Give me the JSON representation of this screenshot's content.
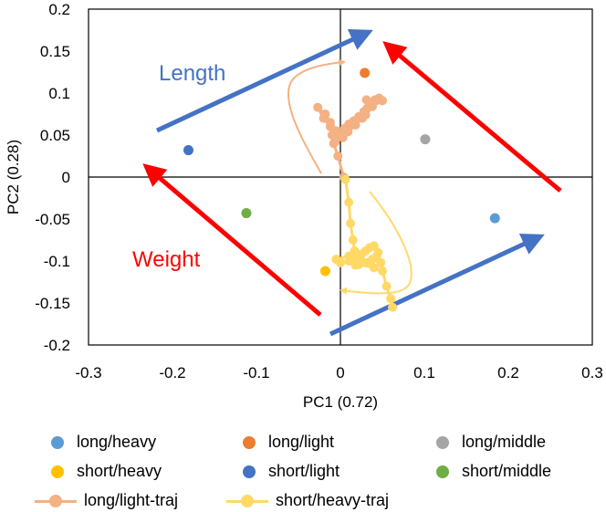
{
  "chart_data": {
    "type": "scatter",
    "title": "",
    "xlabel": "PC1 (0.72)",
    "ylabel": "PC2 (0.28)",
    "xlim": [
      -0.3,
      0.3
    ],
    "ylim": [
      -0.2,
      0.2
    ],
    "xticks": [
      -0.3,
      -0.2,
      -0.1,
      0,
      0.1,
      0.2,
      0.3
    ],
    "yticks": [
      -0.2,
      -0.15,
      -0.1,
      -0.05,
      0,
      0.05,
      0.1,
      0.15,
      0.2
    ],
    "xtick_labels": [
      "-0.3",
      "-0.2",
      "-0.1",
      "0",
      "0.1",
      "0.2",
      "0.3"
    ],
    "ytick_labels": [
      "-0.2",
      "-0.15",
      "-0.1",
      "-0.05",
      "0",
      "0.05",
      "0.1",
      "0.15",
      "0.2"
    ],
    "grid": false,
    "legend_position": "bottom",
    "series": [
      {
        "name": "long/heavy",
        "color": "#5B9BD5",
        "points": [
          [
            0.184,
            -0.049
          ]
        ]
      },
      {
        "name": "long/light",
        "color": "#ED7D31",
        "points": [
          [
            0.029,
            0.124
          ]
        ]
      },
      {
        "name": "long/middle",
        "color": "#A5A5A5",
        "points": [
          [
            0.101,
            0.045
          ]
        ]
      },
      {
        "name": "short/heavy",
        "color": "#FFC000",
        "points": [
          [
            -0.018,
            -0.112
          ]
        ]
      },
      {
        "name": "short/light",
        "color": "#4472C4",
        "points": [
          [
            -0.181,
            0.032
          ]
        ]
      },
      {
        "name": "short/middle",
        "color": "#70AD47",
        "points": [
          [
            -0.112,
            -0.043
          ]
        ]
      },
      {
        "name": "long/light-traj",
        "color": "#F4B183",
        "points": [
          [
            0.004,
            0.0
          ],
          [
            -0.003,
            0.025
          ],
          [
            -0.008,
            0.04
          ],
          [
            -0.01,
            0.05
          ],
          [
            -0.012,
            0.065
          ],
          [
            -0.018,
            0.075
          ],
          [
            -0.027,
            0.083
          ],
          [
            -0.02,
            0.07
          ],
          [
            -0.012,
            0.06
          ],
          [
            -0.005,
            0.055
          ],
          [
            0.0,
            0.05
          ],
          [
            0.005,
            0.058
          ],
          [
            0.01,
            0.063
          ],
          [
            0.016,
            0.067
          ],
          [
            0.022,
            0.072
          ],
          [
            0.028,
            0.078
          ],
          [
            0.026,
            0.07
          ],
          [
            0.032,
            0.082
          ],
          [
            0.036,
            0.088
          ],
          [
            0.031,
            0.092
          ],
          [
            0.041,
            0.092
          ],
          [
            0.046,
            0.094
          ],
          [
            0.05,
            0.091
          ],
          [
            0.038,
            0.084
          ],
          [
            0.03,
            0.074
          ],
          [
            0.018,
            0.062
          ],
          [
            0.009,
            0.054
          ],
          [
            0.003,
            0.047
          ],
          [
            -0.004,
            0.052
          ],
          [
            -0.006,
            0.042
          ]
        ]
      },
      {
        "name": "short/heavy-traj",
        "color": "#FFD966",
        "points": [
          [
            0.006,
            -0.003
          ],
          [
            0.01,
            -0.03
          ],
          [
            0.012,
            -0.055
          ],
          [
            0.015,
            -0.075
          ],
          [
            0.017,
            -0.088
          ],
          [
            0.02,
            -0.095
          ],
          [
            0.025,
            -0.092
          ],
          [
            0.03,
            -0.088
          ],
          [
            0.035,
            -0.084
          ],
          [
            0.04,
            -0.082
          ],
          [
            0.045,
            -0.09
          ],
          [
            0.038,
            -0.098
          ],
          [
            0.032,
            -0.102
          ],
          [
            0.025,
            -0.1
          ],
          [
            0.018,
            -0.105
          ],
          [
            0.01,
            -0.1
          ],
          [
            0.0,
            -0.102
          ],
          [
            -0.005,
            -0.098
          ],
          [
            0.01,
            -0.094
          ],
          [
            0.022,
            -0.104
          ],
          [
            0.04,
            -0.108
          ],
          [
            0.048,
            -0.102
          ],
          [
            0.043,
            -0.095
          ],
          [
            0.05,
            -0.112
          ],
          [
            0.055,
            -0.13
          ],
          [
            0.06,
            -0.145
          ],
          [
            0.062,
            -0.155
          ]
        ]
      }
    ],
    "annotations": [
      {
        "text": "Length",
        "color": "#4472C4"
      },
      {
        "text": "Weight",
        "color": "#FF0000"
      }
    ]
  }
}
